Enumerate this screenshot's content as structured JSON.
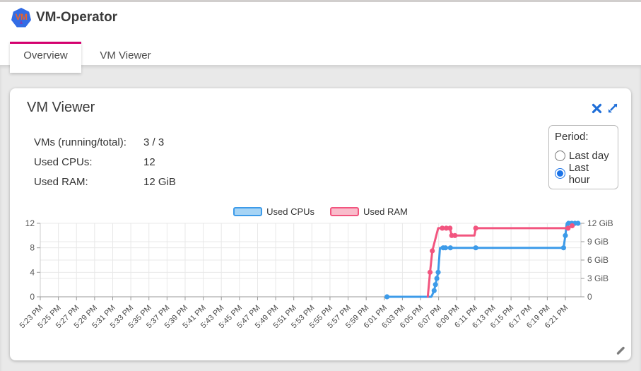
{
  "header": {
    "title": "VM-Operator",
    "logo_text": "VM"
  },
  "tabs": [
    {
      "label": "Overview",
      "active": true
    },
    {
      "label": "VM Viewer",
      "active": false
    }
  ],
  "card": {
    "title": "VM Viewer",
    "controls": {
      "close": "close",
      "expand": "expand"
    },
    "stats": [
      {
        "label": "VMs (running/total):",
        "value": "3 / 3"
      },
      {
        "label": "Used CPUs:",
        "value": "12"
      },
      {
        "label": "Used RAM:",
        "value": "12 GiB"
      }
    ],
    "period": {
      "label": "Period:",
      "options": [
        {
          "label": "Last day",
          "selected": false
        },
        {
          "label": "Last hour",
          "selected": true
        }
      ]
    }
  },
  "colors": {
    "tab_indicator": "#d4006e",
    "control_blue": "#1e6ed8",
    "grid": "#e8e8e8",
    "axis": "#999999",
    "tick_text": "#555555"
  },
  "chart_data": {
    "type": "line",
    "title": "",
    "legend_position": "top-center",
    "grid": true,
    "legend": [
      {
        "name": "Used CPUs",
        "color": "#3d9be9",
        "fill": "#a6d4f5"
      },
      {
        "name": "Used RAM",
        "color": "#f2557f",
        "fill": "#f9bccb"
      }
    ],
    "x_axis": {
      "type": "time",
      "t_unit": "minutes since 5:23 PM",
      "tick_interval_minutes": 2,
      "domain_minutes": [
        0,
        59.7
      ],
      "tick_labels": [
        "5:23 PM",
        "5:25 PM",
        "5:27 PM",
        "5:29 PM",
        "5:31 PM",
        "5:33 PM",
        "5:35 PM",
        "5:37 PM",
        "5:39 PM",
        "5:41 PM",
        "5:43 PM",
        "5:45 PM",
        "5:47 PM",
        "5:49 PM",
        "5:51 PM",
        "5:53 PM",
        "5:55 PM",
        "5:57 PM",
        "5:59 PM",
        "6:01 PM",
        "6:03 PM",
        "6:05 PM",
        "6:07 PM",
        "6:09 PM",
        "6:11 PM",
        "6:13 PM",
        "6:15 PM",
        "6:17 PM",
        "6:19 PM",
        "6:21 PM"
      ]
    },
    "y_axis_left": {
      "name": "CPUs",
      "ticks": [
        0,
        4,
        8,
        12
      ],
      "range": [
        0,
        12
      ]
    },
    "y_axis_right": {
      "name": "RAM",
      "tick_values": [
        0,
        3,
        6,
        9,
        12
      ],
      "tick_labels": [
        "0",
        "3 GiB",
        "6 GiB",
        "9 GiB",
        "12 GiB"
      ],
      "range": [
        0,
        12
      ]
    },
    "series": [
      {
        "name": "Used CPUs",
        "axis": "left",
        "color": "#3d9be9",
        "points": [
          [
            38.3,
            0,
            1
          ],
          [
            43.2,
            0,
            0
          ],
          [
            43.5,
            1,
            1
          ],
          [
            43.65,
            2,
            1
          ],
          [
            43.8,
            3,
            1
          ],
          [
            43.95,
            4,
            1
          ],
          [
            44.15,
            8,
            0
          ],
          [
            44.5,
            8,
            1
          ],
          [
            44.75,
            8,
            1
          ],
          [
            45.3,
            8,
            1
          ],
          [
            48.1,
            8,
            1
          ],
          [
            57.8,
            8,
            1
          ],
          [
            58.0,
            10,
            1
          ],
          [
            58.15,
            12,
            0
          ],
          [
            58.35,
            12,
            1
          ],
          [
            58.7,
            12,
            1
          ],
          [
            59.05,
            12,
            1
          ],
          [
            59.4,
            12,
            1
          ]
        ]
      },
      {
        "name": "Used RAM",
        "axis": "right",
        "color": "#f2557f",
        "points": [
          [
            42.8,
            0,
            0
          ],
          [
            43.05,
            4,
            1
          ],
          [
            43.3,
            7.5,
            1
          ],
          [
            43.95,
            11.2,
            0
          ],
          [
            44.4,
            11.2,
            1
          ],
          [
            44.85,
            11.2,
            1
          ],
          [
            45.25,
            11.2,
            1
          ],
          [
            45.45,
            10,
            1
          ],
          [
            45.8,
            10,
            1
          ],
          [
            47.95,
            10,
            0
          ],
          [
            48.1,
            11.2,
            1
          ],
          [
            58.3,
            11.2,
            1
          ],
          [
            58.75,
            11.6,
            1
          ]
        ]
      }
    ]
  }
}
